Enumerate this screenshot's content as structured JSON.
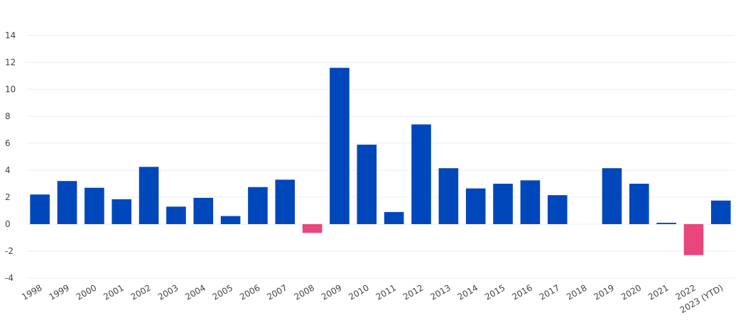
{
  "chart_data": {
    "type": "bar",
    "title": "",
    "xlabel": "",
    "ylabel": "",
    "categories": [
      "1998",
      "1999",
      "2000",
      "2001",
      "2002",
      "2003",
      "2004",
      "2005",
      "2006",
      "2007",
      "2008",
      "2009",
      "2010",
      "2011",
      "2012",
      "2013",
      "2014",
      "2015",
      "2016",
      "2017",
      "2018",
      "2019",
      "2020",
      "2021",
      "2022",
      "2023 (YTD)"
    ],
    "values": [
      2.2,
      3.2,
      2.7,
      1.85,
      4.25,
      1.3,
      1.95,
      0.6,
      2.75,
      3.3,
      -0.65,
      11.6,
      5.9,
      0.9,
      7.4,
      4.15,
      2.65,
      3.0,
      3.25,
      2.15,
      0.0,
      4.15,
      3.0,
      0.1,
      -2.3,
      1.75
    ],
    "ylim": [
      -4,
      14
    ],
    "yticks": [
      -4,
      -2,
      0,
      2,
      4,
      6,
      8,
      10,
      12,
      14
    ],
    "grid": true,
    "legend": "none",
    "colors": {
      "positive": "#0047bb",
      "negative": "#e8467c",
      "grid": "#ececec",
      "zero_line": "#d9d9d9",
      "text": "#444444"
    }
  }
}
